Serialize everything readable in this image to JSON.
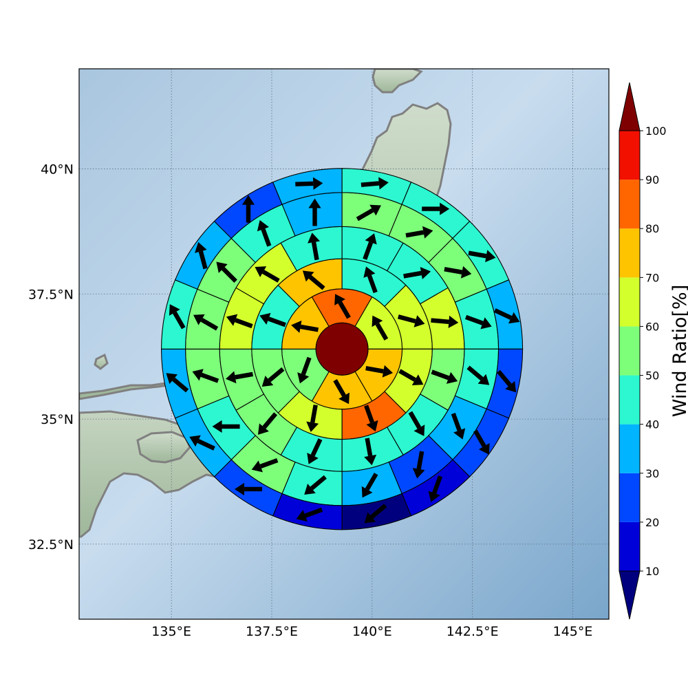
{
  "map": {
    "lon_range": [
      132.7,
      145.9
    ],
    "lat_range": [
      31.0,
      42.0
    ],
    "lon_ticks": [
      135,
      137.5,
      140,
      142.5,
      145
    ],
    "lon_tick_labels": [
      "135°E",
      "137.5°E",
      "140°E",
      "142.5°E",
      "145°E"
    ],
    "lat_ticks": [
      32.5,
      35,
      37.5,
      40
    ],
    "lat_tick_labels": [
      "32.5°N",
      "35°N",
      "37.5°N",
      "40°N"
    ],
    "grid": true,
    "ocean_color": "#8fb2d1",
    "land_color": "#b8c9b0",
    "coastline_color": "#808080"
  },
  "chart_data": {
    "type": "polar-sector-map",
    "center": {
      "lon": 139.25,
      "lat": 36.4
    },
    "center_value": 100,
    "ring_radii_deg": [
      0.65,
      1.5,
      2.25,
      3.05,
      3.9,
      4.5
    ],
    "sectors_per_ring": [
      6,
      8,
      12,
      16,
      16
    ],
    "ring_values": [
      [
        60,
        70,
        70,
        50,
        70,
        80
      ],
      [
        40,
        60,
        60,
        80,
        60,
        50,
        40,
        70
      ],
      [
        40,
        40,
        60,
        50,
        40,
        40,
        40,
        50,
        50,
        60,
        60,
        40
      ],
      [
        50,
        50,
        50,
        40,
        40,
        30,
        20,
        30,
        40,
        50,
        40,
        50,
        50,
        50,
        40,
        30
      ],
      [
        40,
        40,
        40,
        30,
        20,
        20,
        10,
        0,
        10,
        20,
        30,
        30,
        40,
        30,
        20,
        30
      ]
    ],
    "ring_arrow_dirs_deg": [
      [
        330,
        100,
        150,
        200,
        280,
        330
      ],
      [
        340,
        105,
        120,
        160,
        190,
        230,
        290,
        310
      ],
      [
        20,
        80,
        95,
        110,
        150,
        170,
        205,
        220,
        260,
        290,
        300,
        350
      ],
      [
        60,
        80,
        100,
        110,
        130,
        160,
        190,
        210,
        230,
        250,
        270,
        290,
        300,
        315,
        340,
        0
      ],
      [
        85,
        90,
        100,
        115,
        140,
        150,
        200,
        230,
        250,
        270,
        295,
        310,
        330,
        345,
        0,
        88
      ]
    ],
    "colorbar": {
      "label": "Wind Ratio[%]",
      "min": 10,
      "max": 100,
      "ticks": [
        10,
        20,
        30,
        40,
        50,
        60,
        70,
        80,
        90,
        100
      ],
      "tick_labels": [
        "10",
        "20",
        "30",
        "40",
        "50",
        "60",
        "70",
        "80",
        "90",
        "100"
      ],
      "levels_colors": [
        "#0000d9",
        "#0048ff",
        "#00b4ff",
        "#2cf7d0",
        "#7dff7a",
        "#d3ff2c",
        "#ffc400",
        "#ff6600",
        "#f21000"
      ],
      "under_color": "#00007f",
      "over_color": "#7f0000"
    }
  }
}
